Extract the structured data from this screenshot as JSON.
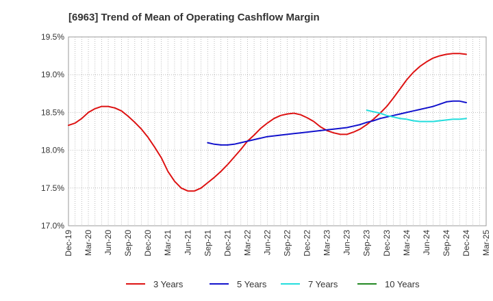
{
  "chart_data": {
    "type": "line",
    "title": "[6963]  Trend of Mean of Operating Cashflow Margin",
    "xlabel": "",
    "ylabel": "",
    "x_ticks": [
      "Dec-19",
      "Mar-20",
      "Jun-20",
      "Sep-20",
      "Dec-20",
      "Mar-21",
      "Jun-21",
      "Sep-21",
      "Dec-21",
      "Mar-22",
      "Jun-22",
      "Sep-22",
      "Dec-22",
      "Mar-23",
      "Jun-23",
      "Sep-23",
      "Dec-23",
      "Mar-24",
      "Jun-24",
      "Sep-24",
      "Dec-24",
      "Mar-25"
    ],
    "y_ticks": [
      "17.0%",
      "17.5%",
      "18.0%",
      "18.5%",
      "19.0%",
      "19.5%"
    ],
    "ylim": [
      17.0,
      19.5
    ],
    "grid": true,
    "legend_position": "bottom",
    "series": [
      {
        "name": "3 Years",
        "color": "#dd1111",
        "x": [
          "Dec-19",
          "Jan-20",
          "Feb-20",
          "Mar-20",
          "Apr-20",
          "May-20",
          "Jun-20",
          "Jul-20",
          "Aug-20",
          "Sep-20",
          "Oct-20",
          "Nov-20",
          "Dec-20",
          "Jan-21",
          "Feb-21",
          "Mar-21",
          "Apr-21",
          "May-21",
          "Jun-21",
          "Jul-21",
          "Aug-21",
          "Sep-21",
          "Oct-21",
          "Nov-21",
          "Dec-21",
          "Jan-22",
          "Feb-22",
          "Mar-22",
          "Apr-22",
          "May-22",
          "Jun-22",
          "Jul-22",
          "Aug-22",
          "Sep-22",
          "Oct-22",
          "Nov-22",
          "Dec-22",
          "Jan-23",
          "Feb-23",
          "Mar-23",
          "Apr-23",
          "May-23",
          "Jun-23",
          "Jul-23",
          "Aug-23",
          "Sep-23",
          "Oct-23",
          "Nov-23",
          "Dec-23",
          "Jan-24",
          "Feb-24",
          "Mar-24",
          "Apr-24",
          "May-24",
          "Jun-24",
          "Jul-24",
          "Aug-24",
          "Sep-24",
          "Oct-24",
          "Nov-24",
          "Dec-24"
        ],
        "values": [
          18.33,
          18.36,
          18.42,
          18.5,
          18.55,
          18.58,
          18.58,
          18.56,
          18.52,
          18.45,
          18.37,
          18.28,
          18.17,
          18.04,
          17.9,
          17.72,
          17.59,
          17.5,
          17.46,
          17.46,
          17.5,
          17.57,
          17.64,
          17.72,
          17.81,
          17.91,
          18.01,
          18.12,
          18.2,
          18.29,
          18.36,
          18.42,
          18.46,
          18.48,
          18.49,
          18.47,
          18.43,
          18.38,
          18.31,
          18.26,
          18.23,
          18.21,
          18.21,
          18.24,
          18.28,
          18.34,
          18.41,
          18.49,
          18.58,
          18.69,
          18.81,
          18.93,
          19.03,
          19.11,
          19.17,
          19.22,
          19.25,
          19.27,
          19.28,
          19.28,
          19.27
        ]
      },
      {
        "name": "5 Years",
        "color": "#1111cc",
        "x": [
          "Dec-20",
          "Jan-21",
          "Feb-21",
          "Mar-21",
          "Apr-21",
          "May-21",
          "Jun-21",
          "Jul-21",
          "Aug-21",
          "Sep-21",
          "Oct-21",
          "Nov-21",
          "Dec-21",
          "Jan-22",
          "Feb-22",
          "Mar-22",
          "Apr-22",
          "May-22",
          "Jun-22",
          "Jul-22",
          "Aug-22",
          "Sep-22",
          "Oct-22",
          "Nov-22",
          "Dec-22",
          "Jan-23",
          "Feb-23",
          "Mar-23",
          "Apr-23",
          "May-23",
          "Jun-23",
          "Jul-23",
          "Aug-23",
          "Sep-23",
          "Oct-23",
          "Nov-23",
          "Dec-23",
          "Jan-24",
          "Feb-24",
          "Mar-24",
          "Apr-24",
          "May-24",
          "Jun-24",
          "Jul-24",
          "Aug-24",
          "Sep-24",
          "Oct-24",
          "Nov-24",
          "Dec-24"
        ],
        "values": [
          null,
          null,
          null,
          null,
          null,
          null,
          null,
          null,
          null,
          18.1,
          18.08,
          18.07,
          18.07,
          18.08,
          18.1,
          18.12,
          18.14,
          18.16,
          18.18,
          18.19,
          18.2,
          18.21,
          18.22,
          18.23,
          18.24,
          18.25,
          18.26,
          18.27,
          18.28,
          18.29,
          18.3,
          18.32,
          18.34,
          18.37,
          18.39,
          18.42,
          18.44,
          18.46,
          18.48,
          18.5,
          18.52,
          18.54,
          18.56,
          18.58,
          18.61,
          18.64,
          18.65,
          18.65,
          18.63
        ]
      },
      {
        "name": "7 Years",
        "color": "#22dddd",
        "x": [
          "Sep-23",
          "Oct-23",
          "Nov-23",
          "Dec-23",
          "Jan-24",
          "Feb-24",
          "Mar-24",
          "Apr-24",
          "May-24",
          "Jun-24",
          "Jul-24",
          "Aug-24",
          "Sep-24",
          "Oct-24",
          "Nov-24",
          "Dec-24"
        ],
        "values": [
          18.53,
          18.51,
          18.49,
          18.46,
          18.44,
          18.42,
          18.41,
          18.39,
          18.38,
          18.38,
          18.38,
          18.39,
          18.4,
          18.41,
          18.41,
          18.42
        ]
      },
      {
        "name": "10 Years",
        "color": "#228822",
        "x": [],
        "values": []
      }
    ]
  }
}
